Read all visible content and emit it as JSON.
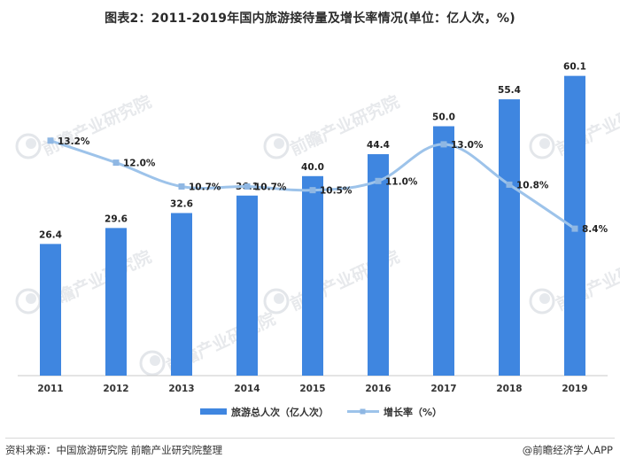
{
  "title": "图表2：2011-2019年国内旅游接待量及增长率情况(单位：亿人次，%)",
  "source": "资料来源：中国旅游研究院  前瞻产业研究院整理",
  "brand": "@前瞻经济学人APP",
  "watermark": "前瞻产业研究院",
  "colors": {
    "bar": "#3f86e0",
    "line": "#9dc3ea",
    "marker": "#8fb7e3"
  },
  "chart_data": {
    "type": "bar",
    "categories": [
      "2011",
      "2012",
      "2013",
      "2014",
      "2015",
      "2016",
      "2017",
      "2018",
      "2019"
    ],
    "series": [
      {
        "name": "旅游总人次（亿人次）",
        "type": "bar",
        "values": [
          26.4,
          29.6,
          32.6,
          36.1,
          40.0,
          44.4,
          50.0,
          55.4,
          60.1
        ],
        "labels": [
          "26.4",
          "29.6",
          "32.6",
          "36.1",
          "40.0",
          "44.4",
          "50.0",
          "55.4",
          "60.1"
        ]
      },
      {
        "name": "增长率（%）",
        "type": "line",
        "values": [
          13.2,
          12.0,
          10.7,
          10.7,
          10.5,
          11.0,
          13.0,
          10.8,
          8.4
        ],
        "labels": [
          "13.2%",
          "12.0%",
          "10.7%",
          "10.7%",
          "10.5%",
          "11.0%",
          "13.0%",
          "10.8%",
          "8.4%"
        ]
      }
    ],
    "ylim_left": [
      0,
      70
    ],
    "ylim_right": [
      0,
      20
    ],
    "grid": false,
    "legend": "bottom"
  }
}
